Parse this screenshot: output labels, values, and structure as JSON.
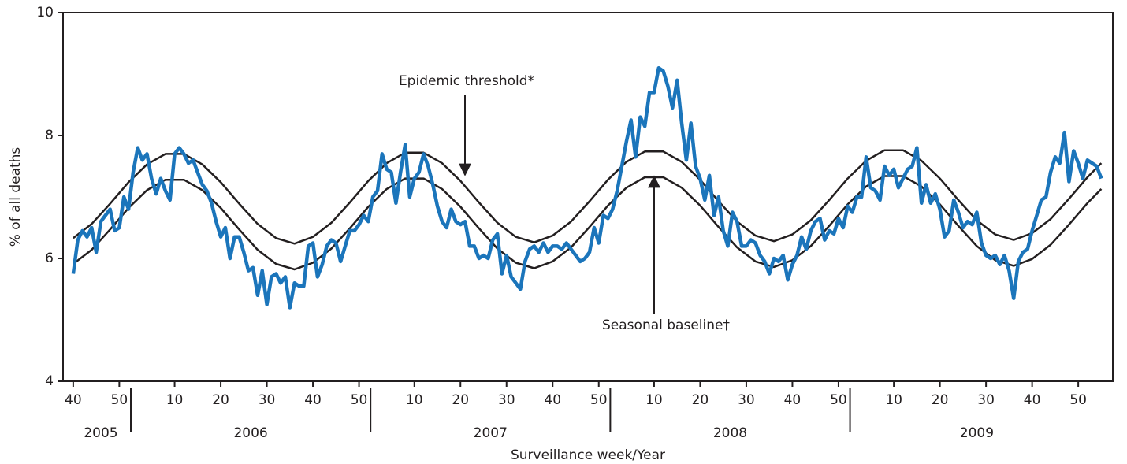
{
  "chart_data": {
    "type": "line",
    "ylabel": "% of all deaths",
    "xlabel": "Surveillance week/Year",
    "xlim": [
      -2.2,
      225.5
    ],
    "ylim": [
      4,
      10
    ],
    "yticks": [
      4,
      6,
      8,
      10
    ],
    "xticks": [
      {
        "value": 0,
        "label": "40"
      },
      {
        "value": 10,
        "label": "50"
      },
      {
        "value": 22,
        "label": "10"
      },
      {
        "value": 32,
        "label": "20"
      },
      {
        "value": 42,
        "label": "30"
      },
      {
        "value": 52,
        "label": "40"
      },
      {
        "value": 62,
        "label": "50"
      },
      {
        "value": 74,
        "label": "10"
      },
      {
        "value": 84,
        "label": "20"
      },
      {
        "value": 94,
        "label": "30"
      },
      {
        "value": 104,
        "label": "40"
      },
      {
        "value": 114,
        "label": "50"
      },
      {
        "value": 126,
        "label": "10"
      },
      {
        "value": 136,
        "label": "20"
      },
      {
        "value": 146,
        "label": "30"
      },
      {
        "value": 156,
        "label": "40"
      },
      {
        "value": 166,
        "label": "50"
      },
      {
        "value": 178,
        "label": "10"
      },
      {
        "value": 188,
        "label": "20"
      },
      {
        "value": 198,
        "label": "30"
      },
      {
        "value": 208,
        "label": "40"
      },
      {
        "value": 218,
        "label": "50"
      }
    ],
    "years": [
      {
        "label": "2005",
        "start": 0
      },
      {
        "label": "2006",
        "start": 13
      },
      {
        "label": "2007",
        "start": 65
      },
      {
        "label": "2008",
        "start": 117
      },
      {
        "label": "2009",
        "start": 169
      }
    ],
    "annotations": [
      "Epidemic threshold*",
      "Seasonal baseline†"
    ],
    "series": [
      {
        "color": "#1b75bb",
        "x": [
          0,
          1,
          2,
          3,
          4,
          5,
          6,
          7,
          8,
          9,
          10,
          11,
          12,
          13,
          14,
          15,
          16,
          17,
          18,
          19,
          20,
          21,
          22,
          23,
          24,
          25,
          26,
          27,
          28,
          29,
          30,
          31,
          32,
          33,
          34,
          35,
          36,
          37,
          38,
          39,
          40,
          41,
          42,
          43,
          44,
          45,
          46,
          47,
          48,
          49,
          50,
          51,
          52,
          53,
          54,
          55,
          56,
          57,
          58,
          59,
          60,
          61,
          62,
          63,
          64,
          65,
          66,
          67,
          68,
          69,
          70,
          71,
          72,
          73,
          74,
          75,
          76,
          77,
          78,
          79,
          80,
          81,
          82,
          83,
          84,
          85,
          86,
          87,
          88,
          89,
          90,
          91,
          92,
          93,
          94,
          95,
          96,
          97,
          98,
          99,
          100,
          101,
          102,
          103,
          104,
          105,
          106,
          107,
          108,
          109,
          110,
          111,
          112,
          113,
          114,
          115,
          116,
          117,
          118,
          119,
          120,
          121,
          122,
          123,
          124,
          125,
          126,
          127,
          128,
          129,
          130,
          131,
          132,
          133,
          134,
          135,
          136,
          137,
          138,
          139,
          140,
          141,
          142,
          143,
          144,
          145,
          146,
          147,
          148,
          149,
          150,
          151,
          152,
          153,
          154,
          155,
          156,
          157,
          158,
          159,
          160,
          161,
          162,
          163,
          164,
          165,
          166,
          167,
          168,
          169,
          170,
          171,
          172,
          173,
          174,
          175,
          176,
          177,
          178,
          179,
          180,
          181,
          182,
          183,
          184,
          185,
          186,
          187,
          188,
          189,
          190,
          191,
          192,
          193,
          194,
          195,
          196,
          197,
          198,
          199,
          200,
          201,
          202,
          203,
          204,
          205,
          206,
          207,
          208,
          209,
          210,
          211,
          212,
          213,
          214,
          215,
          216,
          217,
          218,
          219,
          220,
          221,
          222,
          223
        ],
        "values": [
          5.75,
          6.3,
          6.45,
          6.35,
          6.5,
          6.1,
          6.6,
          6.7,
          6.8,
          6.45,
          6.5,
          7.0,
          6.8,
          7.4,
          7.8,
          7.6,
          7.7,
          7.3,
          7.05,
          7.3,
          7.1,
          6.95,
          7.7,
          7.8,
          7.7,
          7.55,
          7.6,
          7.4,
          7.2,
          7.1,
          6.9,
          6.6,
          6.35,
          6.5,
          6.0,
          6.35,
          6.35,
          6.1,
          5.8,
          5.85,
          5.4,
          5.8,
          5.25,
          5.7,
          5.75,
          5.6,
          5.7,
          5.2,
          5.6,
          5.55,
          5.55,
          6.2,
          6.25,
          5.7,
          5.9,
          6.2,
          6.3,
          6.25,
          5.95,
          6.2,
          6.45,
          6.45,
          6.55,
          6.7,
          6.6,
          7.0,
          7.1,
          7.7,
          7.45,
          7.4,
          6.9,
          7.4,
          7.85,
          7.0,
          7.3,
          7.4,
          7.7,
          7.5,
          7.2,
          6.85,
          6.6,
          6.5,
          6.8,
          6.6,
          6.55,
          6.6,
          6.2,
          6.2,
          6.0,
          6.05,
          6.0,
          6.3,
          6.4,
          5.75,
          6.05,
          5.7,
          5.6,
          5.5,
          5.95,
          6.15,
          6.2,
          6.1,
          6.25,
          6.1,
          6.2,
          6.2,
          6.15,
          6.25,
          6.15,
          6.05,
          5.95,
          6.0,
          6.1,
          6.5,
          6.25,
          6.7,
          6.65,
          6.8,
          7.1,
          7.5,
          7.9,
          8.25,
          7.65,
          8.3,
          8.15,
          8.7,
          8.7,
          9.1,
          9.05,
          8.8,
          8.45,
          8.9,
          8.2,
          7.6,
          8.2,
          7.5,
          7.3,
          6.95,
          7.35,
          6.7,
          7.0,
          6.45,
          6.2,
          6.75,
          6.6,
          6.2,
          6.2,
          6.3,
          6.25,
          6.05,
          5.95,
          5.75,
          6.0,
          5.95,
          6.05,
          5.65,
          5.9,
          6.05,
          6.35,
          6.15,
          6.45,
          6.6,
          6.65,
          6.3,
          6.45,
          6.4,
          6.65,
          6.5,
          6.85,
          6.75,
          7.0,
          7.0,
          7.65,
          7.15,
          7.1,
          6.95,
          7.5,
          7.35,
          7.45,
          7.15,
          7.3,
          7.45,
          7.5,
          7.8,
          6.9,
          7.2,
          6.9,
          7.05,
          6.8,
          6.35,
          6.45,
          6.95,
          6.75,
          6.5,
          6.6,
          6.55,
          6.75,
          6.25,
          6.05,
          6.0,
          6.05,
          5.9,
          6.05,
          5.8,
          5.35,
          5.95,
          6.1,
          6.15,
          6.45,
          6.7,
          6.95,
          7.0,
          7.4,
          7.65,
          7.55,
          8.05,
          7.25,
          7.75,
          7.55,
          7.3,
          7.6,
          7.55,
          7.5,
          7.3
        ]
      },
      {
        "color": "#231f20",
        "x": [
          0,
          4,
          8,
          12,
          16,
          20,
          24,
          28,
          32,
          36,
          40,
          44,
          48,
          52,
          56,
          60,
          64,
          68,
          72,
          76,
          80,
          84,
          88,
          92,
          96,
          100,
          104,
          108,
          112,
          116,
          120,
          124,
          128,
          132,
          136,
          140,
          144,
          148,
          152,
          156,
          160,
          164,
          168,
          172,
          176,
          180,
          184,
          188,
          192,
          196,
          200,
          204,
          208,
          212,
          216,
          220,
          223
        ],
        "values": [
          6.33,
          6.56,
          6.89,
          7.24,
          7.53,
          7.7,
          7.7,
          7.53,
          7.24,
          6.89,
          6.56,
          6.33,
          6.24,
          6.35,
          6.58,
          6.91,
          7.26,
          7.55,
          7.72,
          7.72,
          7.55,
          7.26,
          6.91,
          6.58,
          6.35,
          6.26,
          6.37,
          6.6,
          6.93,
          7.28,
          7.57,
          7.74,
          7.74,
          7.57,
          7.28,
          6.93,
          6.6,
          6.37,
          6.28,
          6.39,
          6.62,
          6.95,
          7.3,
          7.59,
          7.76,
          7.76,
          7.59,
          7.3,
          6.95,
          6.62,
          6.39,
          6.3,
          6.41,
          6.64,
          6.97,
          7.32,
          7.55
        ]
      },
      {
        "color": "#231f20",
        "x": [
          0,
          4,
          8,
          12,
          16,
          20,
          24,
          28,
          32,
          36,
          40,
          44,
          48,
          52,
          56,
          60,
          64,
          68,
          72,
          76,
          80,
          84,
          88,
          92,
          96,
          100,
          104,
          108,
          112,
          116,
          120,
          124,
          128,
          132,
          136,
          140,
          144,
          148,
          152,
          156,
          160,
          164,
          168,
          172,
          176,
          180,
          184,
          188,
          192,
          196,
          200,
          204,
          208,
          212,
          216,
          220,
          223
        ],
        "values": [
          5.91,
          6.14,
          6.47,
          6.82,
          7.11,
          7.28,
          7.28,
          7.11,
          6.82,
          6.47,
          6.14,
          5.91,
          5.82,
          5.93,
          6.16,
          6.49,
          6.84,
          7.13,
          7.3,
          7.3,
          7.13,
          6.84,
          6.49,
          6.16,
          5.93,
          5.84,
          5.95,
          6.18,
          6.51,
          6.86,
          7.15,
          7.32,
          7.32,
          7.15,
          6.86,
          6.51,
          6.18,
          5.95,
          5.86,
          5.97,
          6.2,
          6.53,
          6.88,
          7.17,
          7.34,
          7.34,
          7.17,
          6.88,
          6.53,
          6.2,
          5.97,
          5.88,
          5.99,
          6.22,
          6.55,
          6.9,
          7.13
        ]
      }
    ]
  }
}
